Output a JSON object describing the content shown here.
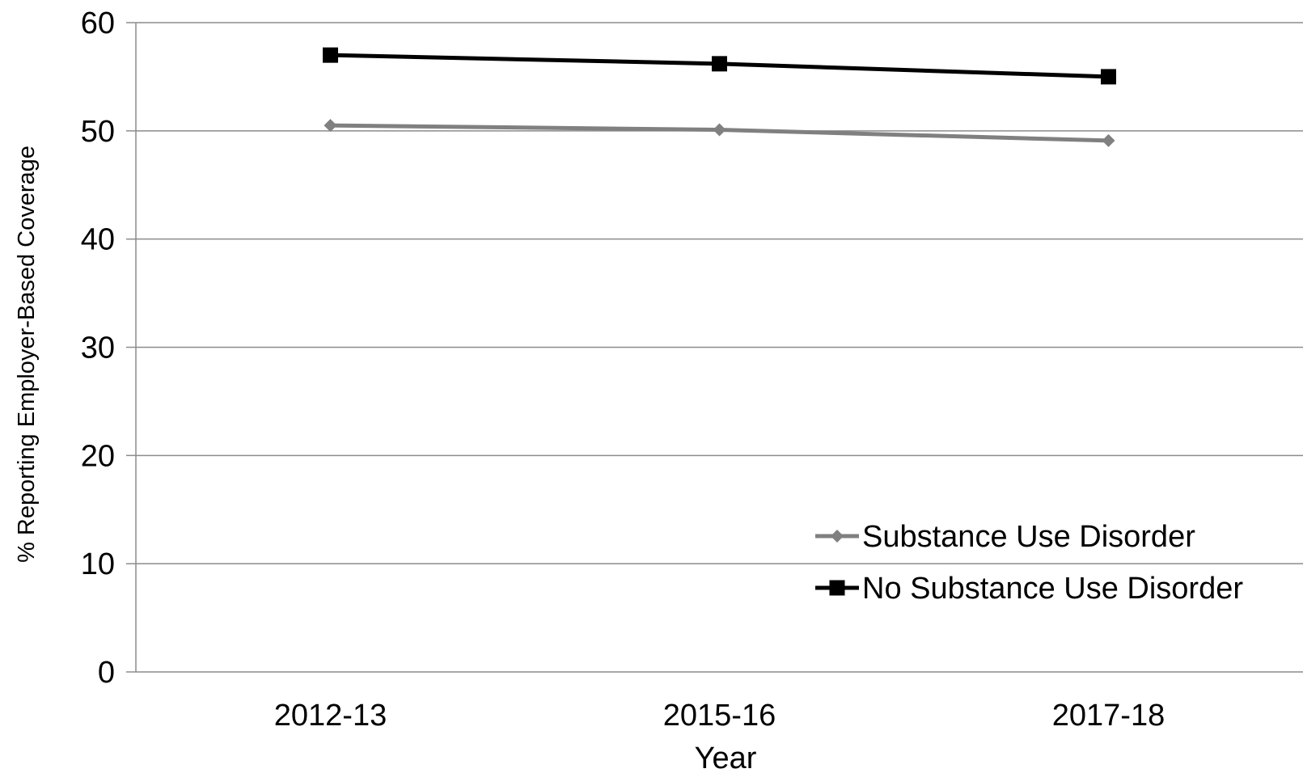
{
  "chart_data": {
    "type": "line",
    "title": "",
    "xlabel": "Year",
    "ylabel": "% Reporting Employer-Based Coverage",
    "categories": [
      "2012-13",
      "2015-16",
      "2017-18"
    ],
    "ylim": [
      0,
      60
    ],
    "yticks": [
      0,
      10,
      20,
      30,
      40,
      50,
      60
    ],
    "grid": "horizontal",
    "legend_position": "bottom-right",
    "series": [
      {
        "name": "Substance Use Disorder",
        "values": [
          50.5,
          50.1,
          49.1
        ],
        "color": "#808080",
        "marker": "diamond"
      },
      {
        "name": "No Substance Use Disorder",
        "values": [
          57.0,
          56.2,
          55.0
        ],
        "color": "#000000",
        "marker": "square"
      }
    ]
  }
}
